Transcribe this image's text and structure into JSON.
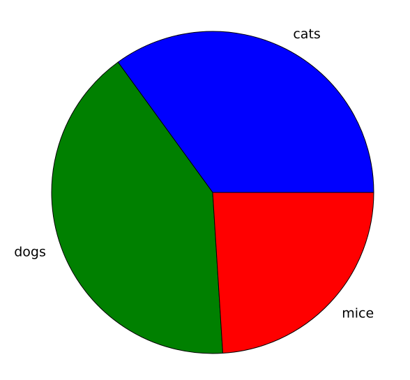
{
  "chart_data": {
    "type": "pie",
    "slices": [
      {
        "label": "cats",
        "value": 35.0,
        "color": "#0000ff"
      },
      {
        "label": "dogs",
        "value": 41.0,
        "color": "#008000"
      },
      {
        "label": "mice",
        "value": 24.0,
        "color": "#ff0000"
      }
    ],
    "start_angle_deg": 0,
    "direction": "counterclockwise",
    "legend": "none"
  }
}
